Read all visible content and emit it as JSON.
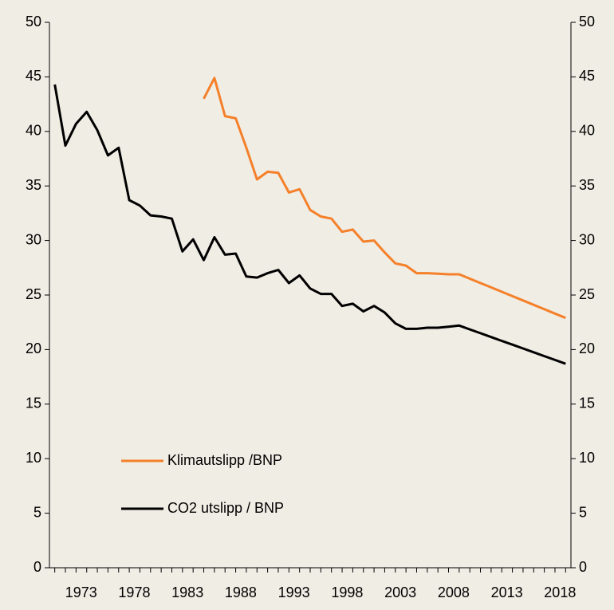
{
  "chart_data": {
    "type": "line",
    "x": [
      1970,
      1971,
      1972,
      1973,
      1974,
      1975,
      1976,
      1977,
      1978,
      1979,
      1980,
      1981,
      1982,
      1983,
      1984,
      1985,
      1986,
      1987,
      1988,
      1989,
      1990,
      1991,
      1992,
      1993,
      1994,
      1995,
      1996,
      1997,
      1998,
      1999,
      2000,
      2001,
      2002,
      2003,
      2004,
      2005,
      2006,
      2007,
      2008,
      2009,
      2010,
      2011,
      2012,
      2013,
      2014,
      2015,
      2016,
      2017,
      2018
    ],
    "series": [
      {
        "name": "Klimautslipp /BNP",
        "color": "#f5802a",
        "values": [
          null,
          null,
          null,
          null,
          null,
          null,
          null,
          null,
          null,
          null,
          null,
          null,
          null,
          null,
          43.0,
          44.9,
          41.4,
          41.2,
          38.5,
          35.6,
          36.3,
          36.2,
          34.4,
          34.7,
          32.8,
          32.2,
          32.0,
          30.8,
          31.0,
          29.9,
          30.0,
          28.9,
          27.9,
          27.7,
          27.0,
          27.0,
          26.95,
          26.9,
          26.9,
          26.5,
          26.1,
          25.7,
          25.3,
          24.9,
          24.5,
          24.1,
          23.7,
          23.3,
          22.9
        ]
      },
      {
        "name": "CO2 utslipp / BNP",
        "color": "#000000",
        "values": [
          44.3,
          38.7,
          40.7,
          41.8,
          40.1,
          37.8,
          38.5,
          33.7,
          33.2,
          32.3,
          32.2,
          32.0,
          29.0,
          30.1,
          28.2,
          30.3,
          28.7,
          28.8,
          26.7,
          26.6,
          27.0,
          27.3,
          26.1,
          26.8,
          25.6,
          25.1,
          25.1,
          24.0,
          24.2,
          23.5,
          24.0,
          23.4,
          22.4,
          21.9,
          21.9,
          22.0,
          22.0,
          22.1,
          22.2,
          21.85,
          21.5,
          21.15,
          20.8,
          20.45,
          20.1,
          19.75,
          19.4,
          19.05,
          18.7
        ]
      }
    ],
    "xlim": [
      1969.5,
      2018.5
    ],
    "xticks": [
      1973,
      1978,
      1983,
      1988,
      1993,
      1998,
      2003,
      2008,
      2013,
      2018
    ],
    "ylim": [
      0,
      50
    ],
    "yticks": [
      0,
      5,
      10,
      15,
      20,
      25,
      30,
      35,
      40,
      45,
      50
    ],
    "y2lim": [
      0,
      50
    ],
    "y2ticks": [
      0,
      5,
      10,
      15,
      20,
      25,
      30,
      35,
      40,
      45,
      50
    ],
    "grid": false,
    "legend": "lower center"
  }
}
